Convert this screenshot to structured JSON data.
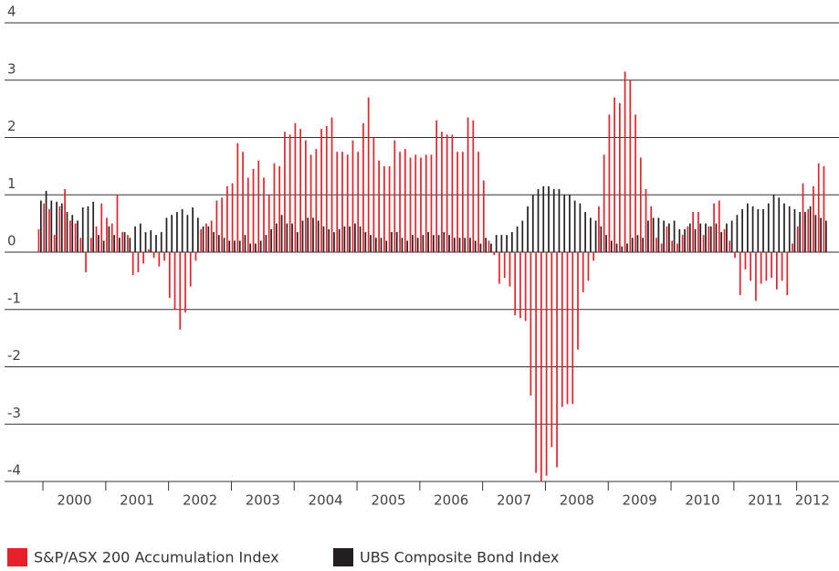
{
  "chart_data": {
    "type": "bar",
    "categories": [
      null,
      "2000",
      null,
      null,
      null,
      null,
      null,
      null,
      null,
      null,
      null,
      null,
      null,
      "2001",
      null,
      null,
      null,
      null,
      null,
      null,
      null,
      null,
      null,
      null,
      null,
      "2002",
      null,
      null,
      null,
      null,
      null,
      null,
      null,
      null,
      null,
      null,
      null,
      "2003",
      null,
      null,
      null,
      null,
      null,
      null,
      null,
      null,
      null,
      null,
      null,
      "2004",
      null,
      null,
      null,
      null,
      null,
      null,
      null,
      null,
      null,
      null,
      null,
      "2005",
      null,
      null,
      null,
      null,
      null,
      null,
      null,
      null,
      null,
      null,
      null,
      "2006",
      null,
      null,
      null,
      null,
      null,
      null,
      null,
      null,
      null,
      null,
      null,
      "2007",
      null,
      null,
      null,
      null,
      null,
      null,
      null,
      null,
      null,
      null,
      null,
      "2008",
      null,
      null,
      null,
      null,
      null,
      null,
      null,
      null,
      null,
      null,
      null,
      "2009",
      null,
      null,
      null,
      null,
      null,
      null,
      null,
      null,
      null,
      null,
      null,
      "2010",
      null,
      null,
      null,
      null,
      null,
      null,
      null,
      null,
      null,
      null,
      null,
      "2011",
      null,
      null,
      null,
      null,
      null,
      null,
      null,
      null,
      null,
      null,
      null,
      "2012",
      null,
      null,
      null,
      null,
      null
    ],
    "series": [
      {
        "name": "S&P/ASX 200 Accumulation Index",
        "color": "#e8202a",
        "values": [
          0.4,
          0.85,
          0.75,
          0.3,
          0.8,
          1.1,
          0.55,
          0.5,
          0.25,
          -0.35,
          0.25,
          0.45,
          0.85,
          0.6,
          0.5,
          1.0,
          0.35,
          0.3,
          -0.4,
          -0.35,
          -0.2,
          0.05,
          -0.1,
          -0.25,
          -0.15,
          -0.8,
          -1.0,
          -1.35,
          -1.05,
          -0.6,
          -0.15,
          0.4,
          0.5,
          0.55,
          0.9,
          0.95,
          1.15,
          1.2,
          1.9,
          1.75,
          1.3,
          1.45,
          1.6,
          1.3,
          1.0,
          1.55,
          1.5,
          2.1,
          2.05,
          2.25,
          2.15,
          1.95,
          1.7,
          1.8,
          2.15,
          2.2,
          2.35,
          1.75,
          1.75,
          1.7,
          1.95,
          1.75,
          2.25,
          2.7,
          2.0,
          1.6,
          1.5,
          1.5,
          1.95,
          1.75,
          1.8,
          1.65,
          1.7,
          1.65,
          1.7,
          1.7,
          2.3,
          2.1,
          2.05,
          2.05,
          1.75,
          1.75,
          2.35,
          2.3,
          1.75,
          1.25,
          0.2,
          -0.05,
          -0.55,
          -0.45,
          -0.6,
          -1.1,
          -1.15,
          -1.2,
          -2.5,
          -3.85,
          -4.0,
          -3.9,
          -3.4,
          -3.75,
          -2.7,
          -2.65,
          -2.65,
          -1.7,
          -0.7,
          -0.5,
          -0.15,
          0.8,
          1.7,
          2.4,
          2.7,
          2.6,
          3.15,
          3.0,
          2.4,
          1.65,
          1.1,
          0.8,
          0.25,
          0.15,
          0.45,
          0.2,
          0.15,
          0.3,
          0.45,
          0.7,
          0.7,
          0.3,
          0.45,
          0.85,
          0.9,
          0.4,
          0.2,
          -0.1,
          -0.75,
          -0.3,
          -0.5,
          -0.85,
          -0.55,
          -0.5,
          -0.45,
          -0.65,
          -0.5,
          -0.75,
          0.15,
          0.45,
          1.2,
          0.75,
          1.15,
          1.55,
          1.5
        ]
      },
      {
        "name": "UBS Composite Bond Index",
        "color": "#231f20",
        "values": [
          0.9,
          1.07,
          0.9,
          0.88,
          0.85,
          0.7,
          0.65,
          0.55,
          0.78,
          0.8,
          0.88,
          0.3,
          0.2,
          0.45,
          0.3,
          0.25,
          0.35,
          0.25,
          0.45,
          0.5,
          0.35,
          0.38,
          0.3,
          0.35,
          0.6,
          0.65,
          0.7,
          0.75,
          0.65,
          0.78,
          0.6,
          0.45,
          0.45,
          0.35,
          0.3,
          0.25,
          0.2,
          0.2,
          0.2,
          0.3,
          0.15,
          0.15,
          0.2,
          0.3,
          0.4,
          0.5,
          0.65,
          0.5,
          0.5,
          0.35,
          0.55,
          0.6,
          0.6,
          0.55,
          0.45,
          0.4,
          0.35,
          0.4,
          0.45,
          0.45,
          0.5,
          0.45,
          0.35,
          0.3,
          0.25,
          0.25,
          0.2,
          0.35,
          0.35,
          0.25,
          0.2,
          0.3,
          0.25,
          0.3,
          0.35,
          0.3,
          0.3,
          0.35,
          0.3,
          0.25,
          0.25,
          0.25,
          0.25,
          0.2,
          0.15,
          0.25,
          0.15,
          0.3,
          0.3,
          0.3,
          0.35,
          0.45,
          0.55,
          0.8,
          1.0,
          1.1,
          1.15,
          1.15,
          1.1,
          1.1,
          1.0,
          1.0,
          0.9,
          0.85,
          0.7,
          0.6,
          0.55,
          0.45,
          0.3,
          0.2,
          0.15,
          0.1,
          0.15,
          0.25,
          0.3,
          0.25,
          0.55,
          0.6,
          0.6,
          0.55,
          0.5,
          0.55,
          0.4,
          0.4,
          0.5,
          0.4,
          0.5,
          0.5,
          0.45,
          0.5,
          0.35,
          0.5,
          0.55,
          0.65,
          0.75,
          0.85,
          0.8,
          0.75,
          0.75,
          0.85,
          1.0,
          0.95,
          0.85,
          0.8,
          0.75,
          0.7,
          0.7,
          0.8,
          0.65,
          0.6,
          0.55
        ]
      }
    ],
    "ylim": [
      -4,
      4
    ],
    "yticks": [
      -4,
      -3,
      -2,
      -1,
      0,
      1,
      2,
      3,
      4
    ],
    "grid": true,
    "legend": "bottom"
  }
}
